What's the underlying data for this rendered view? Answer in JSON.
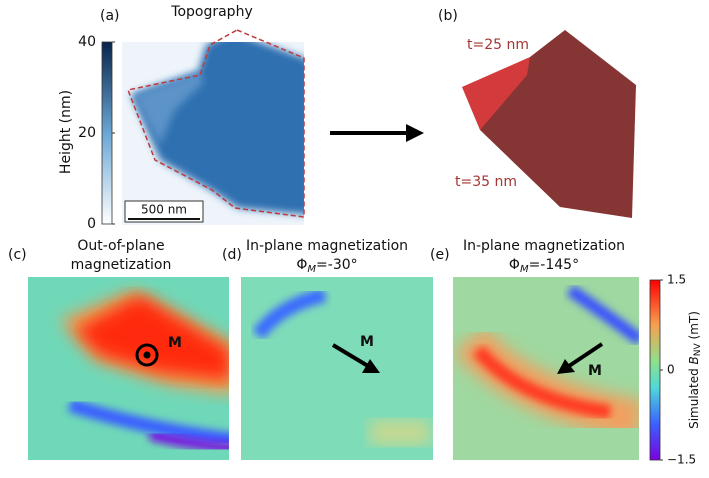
{
  "panels": [
    {
      "label": "(a)",
      "title": "Topography",
      "scalebar": "500 nm",
      "colorbar": {
        "axis_label": "Height (nm)",
        "lim": [
          0,
          40
        ],
        "ticks": [
          0,
          20,
          40
        ]
      }
    },
    {
      "label": "(b)",
      "annotations": [
        "t=25 nm",
        "t=35 nm"
      ]
    },
    {
      "label": "(c)",
      "title": [
        "Out-of-plane",
        "magnetization"
      ],
      "marker": "M"
    },
    {
      "label": "(d)",
      "title": "In-plane magnetization",
      "angle": {
        "symbol": "Φ",
        "sub": "M",
        "value": "=-30°"
      },
      "marker": "M"
    },
    {
      "label": "(e)",
      "title": "In-plane magnetization",
      "angle": {
        "symbol": "Φ",
        "sub": "M",
        "value": "=-145°"
      },
      "marker": "M",
      "colorbar": {
        "axis_label": {
          "prefix": "Simulated",
          "symbol": "B",
          "sub": "NV",
          "unit": "(mT)"
        },
        "lim": [
          -1.5,
          1.5
        ],
        "ticks": [
          {
            "value": -1.5,
            "label": "−1.5"
          },
          0,
          1.5
        ]
      }
    }
  ]
}
